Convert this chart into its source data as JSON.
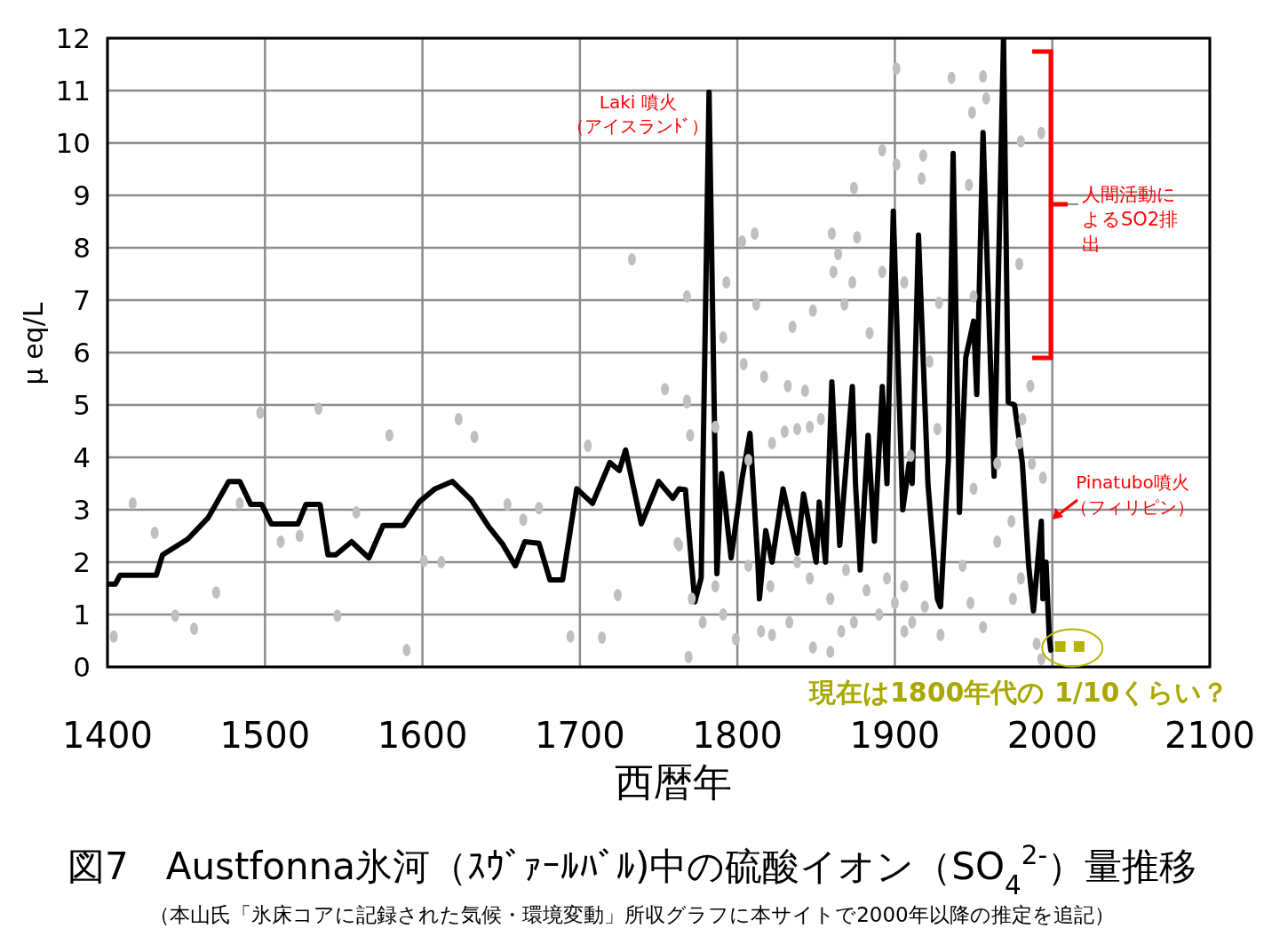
{
  "chart_data": {
    "type": "line",
    "title": "図7　Austfonna氷河（ｽｳﾞｧｰﾙﾊﾞﾙ)中の硫酸イオン（SO$_{4}$$^{2-}$）量推移",
    "subtitle": "（本山氏「氷床コアに記録された気候・環境変動」所収グラフに本サイトで2000年以降の推定を追記）",
    "xlabel": "西暦年",
    "ylabel": "μ eq/L",
    "xlim": [
      1400,
      2100
    ],
    "ylim": [
      0,
      12
    ],
    "xticks": [
      1400,
      1500,
      1600,
      1700,
      1800,
      1900,
      2000,
      2100
    ],
    "yticks": [
      0,
      1,
      2,
      3,
      4,
      5,
      6,
      7,
      8,
      9,
      10,
      11,
      12
    ],
    "grid": true,
    "annotations": [
      {
        "text": "Laki 噴火（アイスランﾄﾞ）",
        "x": 1782,
        "y": 11.0
      },
      "人間活動によるSO2排出",
      "Pinatubo噴火（フィリピン）",
      {
        "text": "現在は1800年代の 1/10くらい？",
        "x": 2011,
        "y": 0.4
      }
    ],
    "series": [
      {
        "color": "#000000",
        "marker": "none",
        "x": [
          1400,
          1405,
          1408,
          1431,
          1435,
          1451,
          1464,
          1477,
          1484,
          1491,
          1498,
          1504,
          1521,
          1526,
          1535,
          1540,
          1545,
          1555,
          1566,
          1575,
          1588,
          1598,
          1608,
          1619,
          1631,
          1642,
          1651,
          1659,
          1665,
          1674,
          1681,
          1689,
          1698,
          1708,
          1719,
          1725,
          1729,
          1739,
          1742,
          1750,
          1759,
          1763,
          1767,
          1771,
          1773,
          1777,
          1782,
          1787,
          1790,
          1796,
          1803,
          1808,
          1813,
          1814,
          1818,
          1822,
          1829,
          1838,
          1842,
          1850,
          1852,
          1856,
          1860,
          1865,
          1873,
          1875,
          1878,
          1883,
          1887,
          1892,
          1895,
          1899,
          1905,
          1909,
          1911,
          1915,
          1921,
          1927,
          1929,
          1934,
          1937,
          1941,
          1945,
          1950,
          1952,
          1956,
          1963,
          1969,
          1972,
          1976,
          1981,
          1985,
          1988,
          1993,
          1994,
          1996,
          1998,
          1999
        ],
        "values": [
          1.58,
          1.58,
          1.75,
          1.75,
          2.14,
          2.44,
          2.85,
          3.54,
          3.54,
          3.1,
          3.1,
          2.73,
          2.73,
          3.1,
          3.1,
          2.14,
          2.14,
          2.39,
          2.08,
          2.7,
          2.7,
          3.15,
          3.4,
          3.54,
          3.19,
          2.68,
          2.34,
          1.93,
          2.39,
          2.36,
          1.66,
          1.66,
          3.4,
          3.12,
          3.9,
          3.75,
          4.14,
          2.73,
          2.95,
          3.54,
          3.22,
          3.4,
          3.38,
          1.93,
          1.24,
          1.7,
          10.97,
          1.78,
          3.69,
          2.08,
          3.6,
          4.46,
          2.0,
          1.3,
          2.6,
          2.0,
          3.4,
          2.17,
          3.3,
          2.0,
          3.15,
          2.0,
          5.44,
          2.32,
          5.35,
          3.5,
          1.85,
          4.42,
          2.4,
          5.35,
          3.5,
          8.7,
          3.0,
          3.88,
          3.5,
          8.24,
          3.5,
          1.3,
          1.15,
          3.95,
          9.8,
          2.95,
          5.9,
          6.6,
          5.2,
          10.2,
          3.64,
          12.0,
          5.05,
          5.0,
          3.88,
          1.93,
          1.07,
          2.78,
          1.3,
          2.0,
          0.58,
          0.32
        ]
      },
      {
        "type": "scatter",
        "color": "#c0bfbf",
        "marker": "circle",
        "x": [
          1497,
          1534,
          1579,
          1416,
          1430,
          1484,
          1510,
          1522,
          1558,
          1469,
          1443,
          1455,
          1404,
          1546,
          1590,
          1623,
          1633,
          1654,
          1664,
          1674,
          1612,
          1601,
          1705,
          1724,
          1694,
          1714,
          1762,
          1768,
          1770,
          1754,
          1733,
          1769,
          1768,
          1793,
          1791,
          1803,
          1811,
          1812,
          1804,
          1817,
          1835,
          1848,
          1832,
          1843,
          1860,
          1864,
          1874,
          1876,
          1873,
          1861,
          1868,
          1892,
          1901,
          1901,
          1884,
          1892,
          1768,
          1786,
          1822,
          1830,
          1838,
          1846,
          1853,
          1807,
          1763,
          1771,
          1786,
          1778,
          1791,
          1799,
          1815,
          1822,
          1833,
          1848,
          1859,
          1866,
          1874,
          1890,
          1821,
          1838,
          1846,
          1859,
          1869,
          1882,
          1895,
          1807,
          1936,
          1956,
          1958,
          1949,
          1993,
          1980,
          1918,
          1917,
          1947,
          1979,
          1928,
          1906,
          1950,
          1922,
          1986,
          1981,
          1927,
          1979,
          1994,
          1987,
          1965,
          1910,
          1950,
          1974,
          1965,
          1943,
          1906,
          1919,
          1900,
          1911,
          1948,
          1956,
          1975,
          1980,
          1929,
          1906,
          1990,
          1993
        ],
        "values": [
          4.85,
          4.93,
          4.42,
          3.12,
          2.56,
          3.12,
          2.39,
          2.5,
          2.95,
          1.42,
          0.98,
          0.73,
          0.58,
          0.98,
          0.32,
          4.73,
          4.39,
          3.1,
          2.81,
          3.03,
          2.0,
          2.02,
          4.22,
          1.37,
          0.58,
          0.56,
          2.36,
          5.05,
          4.42,
          5.3,
          7.78,
          0.19,
          7.07,
          7.34,
          6.29,
          8.12,
          8.27,
          6.92,
          5.78,
          5.54,
          6.49,
          6.8,
          5.36,
          5.27,
          8.27,
          7.88,
          9.14,
          8.2,
          7.34,
          7.54,
          6.92,
          9.86,
          11.42,
          9.59,
          6.37,
          7.54,
          5.08,
          4.58,
          4.27,
          4.49,
          4.54,
          4.58,
          4.73,
          3.95,
          2.32,
          1.3,
          1.54,
          0.85,
          1.0,
          0.53,
          0.68,
          0.61,
          0.85,
          0.37,
          0.29,
          0.68,
          0.85,
          1.0,
          1.54,
          2.0,
          1.69,
          1.3,
          1.85,
          1.46,
          1.69,
          1.93,
          11.24,
          11.27,
          10.85,
          10.58,
          10.19,
          10.03,
          9.76,
          9.32,
          9.2,
          7.69,
          6.95,
          7.34,
          7.07,
          5.83,
          5.36,
          4.73,
          4.54,
          4.27,
          3.61,
          3.88,
          3.88,
          4.03,
          3.4,
          2.78,
          2.39,
          1.93,
          1.54,
          1.15,
          1.22,
          0.85,
          1.22,
          0.76,
          1.3,
          1.69,
          0.61,
          0.68,
          0.44,
          0.15
        ]
      },
      {
        "type": "scatter",
        "color": "#b4b400",
        "marker": "square",
        "x": [
          2005,
          2017
        ],
        "values": [
          0.39,
          0.39
        ]
      }
    ]
  }
}
